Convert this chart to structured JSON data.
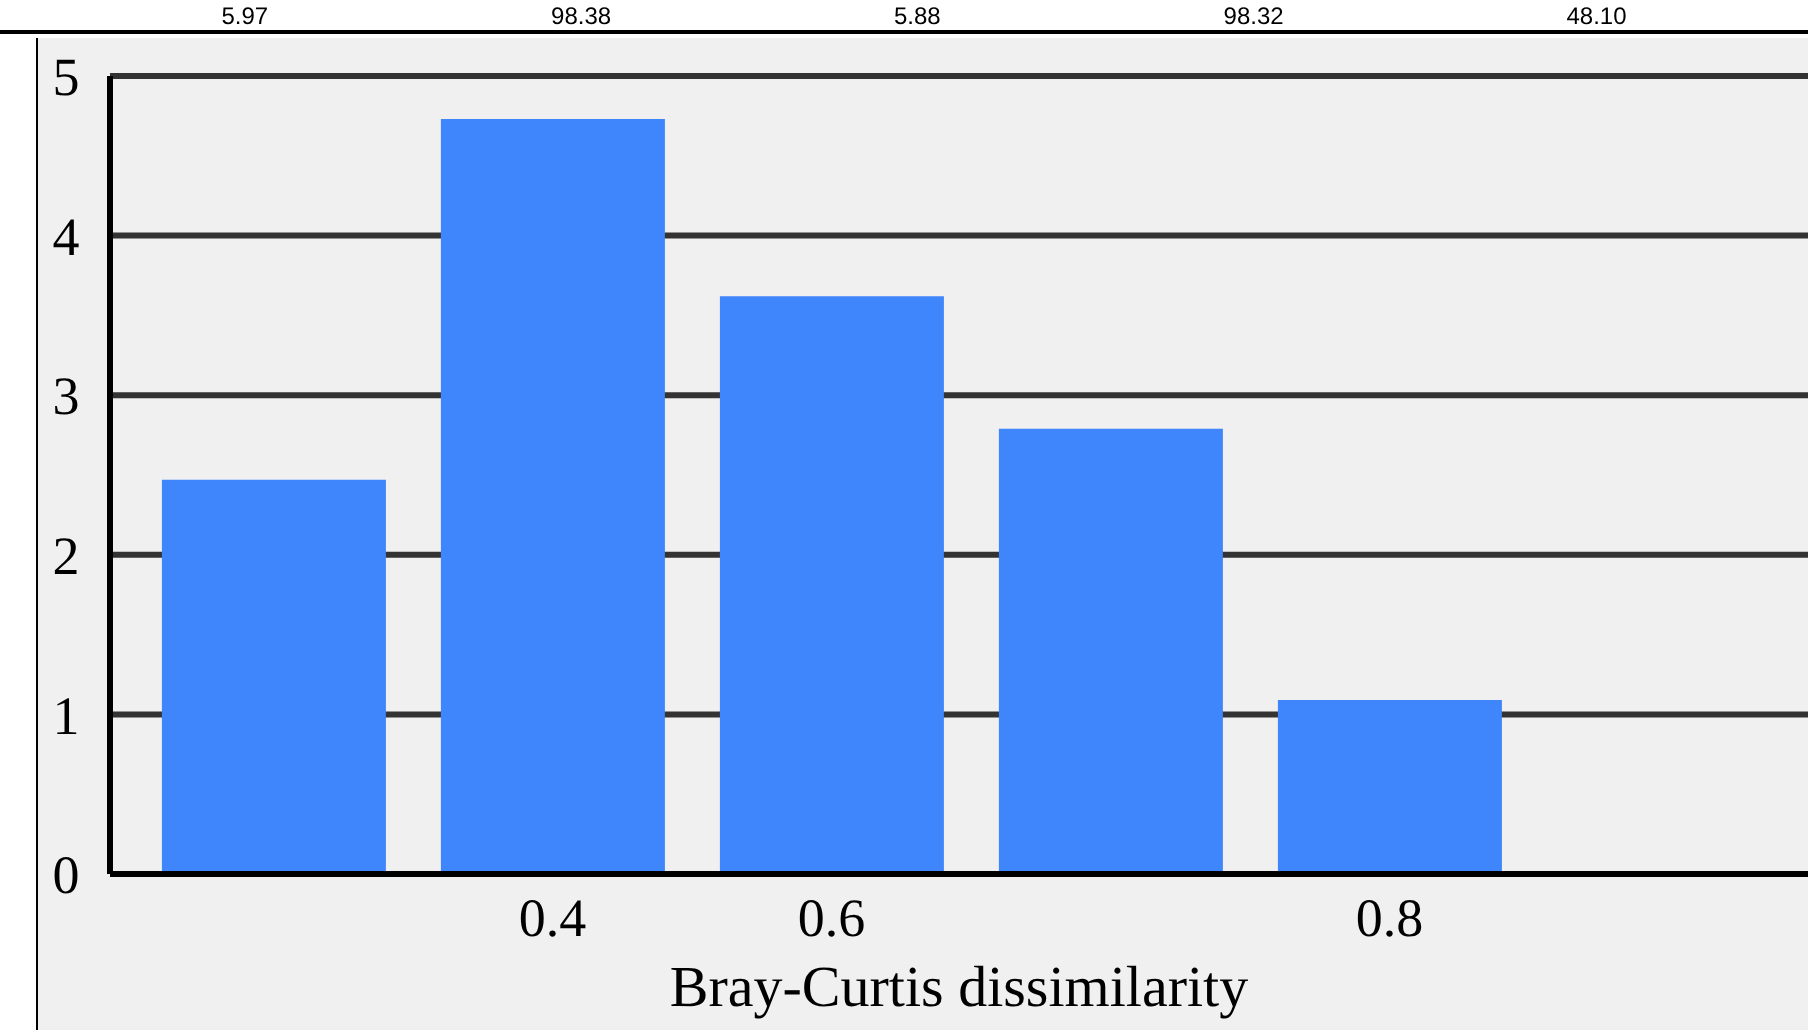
{
  "chart_data": {
    "type": "bar",
    "xlabel": "Bray-Curtis dissimilarity",
    "categories": [
      null,
      "0.4",
      "0.6",
      null,
      "0.8",
      null
    ],
    "values": [
      2.47,
      4.73,
      3.62,
      2.79,
      1.09,
      null
    ],
    "color": "#3f85fc",
    "ylim": [
      0,
      5
    ],
    "yticks": [
      0,
      1,
      2,
      3,
      4,
      5
    ],
    "grid": "y",
    "annotations": [
      "5.97",
      "98.38",
      "5.88",
      "98.32",
      "48.10"
    ]
  }
}
